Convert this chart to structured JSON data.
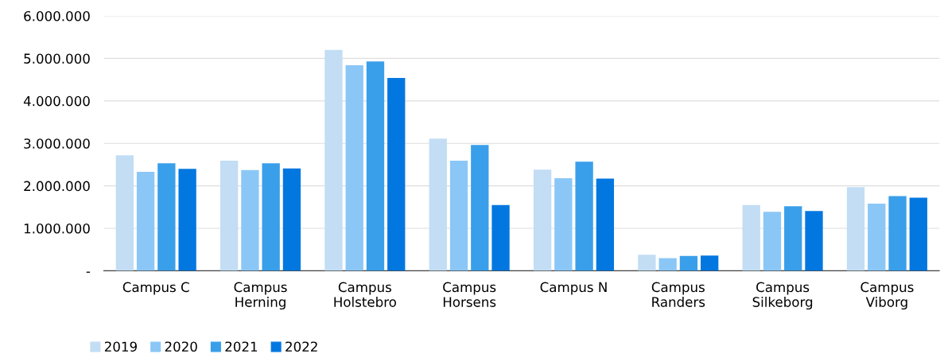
{
  "chart_data": {
    "type": "bar",
    "categories": [
      "Campus C",
      "Campus\nHerning",
      "Campus\nHolstebro",
      "Campus\nHorsens",
      "Campus N",
      "Campus\nRanders",
      "Campus\nSilkeborg",
      "Campus\nViborg"
    ],
    "series": [
      {
        "name": "2019",
        "color": "#c2ddf4",
        "values": [
          2720000,
          2590000,
          5200000,
          3110000,
          2380000,
          380000,
          1550000,
          1970000
        ]
      },
      {
        "name": "2020",
        "color": "#8bc7f6",
        "values": [
          2330000,
          2370000,
          4840000,
          2590000,
          2180000,
          300000,
          1390000,
          1580000
        ]
      },
      {
        "name": "2021",
        "color": "#3a9fea",
        "values": [
          2530000,
          2530000,
          4930000,
          2960000,
          2570000,
          350000,
          1520000,
          1760000
        ]
      },
      {
        "name": "2022",
        "color": "#0277e0",
        "values": [
          2400000,
          2410000,
          4540000,
          1550000,
          2170000,
          360000,
          1410000,
          1720000
        ]
      }
    ],
    "ylim": [
      0,
      6000000
    ],
    "yticks": [
      {
        "value": 0,
        "label": "-"
      },
      {
        "value": 1000000,
        "label": "1.000.000"
      },
      {
        "value": 2000000,
        "label": "2.000.000"
      },
      {
        "value": 3000000,
        "label": "3.000.000"
      },
      {
        "value": 4000000,
        "label": "4.000.000"
      },
      {
        "value": 5000000,
        "label": "5.000.000"
      },
      {
        "value": 6000000,
        "label": "6.000.000"
      }
    ],
    "grid": "y",
    "legend": "bottom left"
  }
}
